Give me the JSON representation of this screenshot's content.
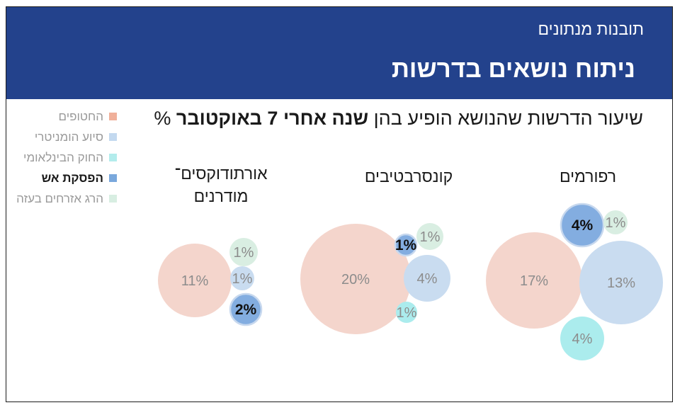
{
  "header": {
    "section_title": "תובנות מנתונים",
    "main_title": "ניתוח נושאים בדרשות"
  },
  "subtitle": {
    "prefix": "שיעור הדרשות שהנושא הופיע בהן ",
    "bold": "שנה אחרי 7 באוקטובר",
    "suffix": " %"
  },
  "legend": [
    {
      "label": "החטופים",
      "color": "#f0b09a",
      "active": false
    },
    {
      "label": "סיוע הומניטרי",
      "color": "#c3d9ef",
      "active": false
    },
    {
      "label": "החוק הבינלאומי",
      "color": "#b3ecec",
      "active": false
    },
    {
      "label": "הפסקת אש",
      "color": "#7aa8dc",
      "active": true
    },
    {
      "label": "הרג אזרחים בעזה",
      "color": "#d8eee2",
      "active": false
    }
  ],
  "colors": {
    "header_bg": "#23428c",
    "hostages": "#f4d5cc",
    "humanitarian": "#c9dcf0",
    "intl_law": "#abeced",
    "ceasefire": "#83ade0",
    "civilians": "#d9eee2"
  },
  "chart_data": {
    "type": "bubble",
    "unit": "%",
    "groups": [
      {
        "name": "רפורמים",
        "values": [
          {
            "topic": "החטופים",
            "value": 17,
            "label": "17%"
          },
          {
            "topic": "סיוע הומניטרי",
            "value": 13,
            "label": "13%"
          },
          {
            "topic": "החוק הבינלאומי",
            "value": 4,
            "label": "4%"
          },
          {
            "topic": "הפסקת אש",
            "value": 4,
            "label": "4%"
          },
          {
            "topic": "הרג אזרחים בעזה",
            "value": 1,
            "label": "1%"
          }
        ]
      },
      {
        "name": "קונסרבטיבים",
        "values": [
          {
            "topic": "החטופים",
            "value": 20,
            "label": "20%"
          },
          {
            "topic": "סיוע הומניטרי",
            "value": 4,
            "label": "4%"
          },
          {
            "topic": "החוק הבינלאומי",
            "value": 1,
            "label": "1%"
          },
          {
            "topic": "הפסקת אש",
            "value": 1,
            "label": "1%"
          },
          {
            "topic": "הרג אזרחים בעזה",
            "value": 1,
            "label": "1%"
          }
        ]
      },
      {
        "name_lines": [
          "אורתודוקסים־",
          "מודרנים"
        ],
        "values": [
          {
            "topic": "החטופים",
            "value": 11,
            "label": "11%"
          },
          {
            "topic": "סיוע הומניטרי",
            "value": 1,
            "label": "1%"
          },
          {
            "topic": "הפסקת אש",
            "value": 2,
            "label": "2%"
          },
          {
            "topic": "הרג אזרחים בעזה",
            "value": 1,
            "label": "1%"
          }
        ]
      }
    ]
  }
}
